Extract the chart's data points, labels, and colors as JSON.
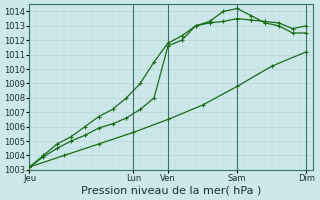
{
  "bg_color": "#cce8e8",
  "grid_color": "#b8d4d4",
  "line_color": "#1a6b1a",
  "ylim": [
    1003,
    1014.5
  ],
  "yticks": [
    1003,
    1004,
    1005,
    1006,
    1007,
    1008,
    1009,
    1010,
    1011,
    1012,
    1013,
    1014
  ],
  "xlabel": "Pression niveau de la mer( hPa )",
  "xlabel_fontsize": 8,
  "tick_fontsize": 6,
  "xtick_labels": [
    "Jeu",
    "Lun",
    "Ven",
    "Sam",
    "Dim"
  ],
  "xtick_positions": [
    0,
    30,
    40,
    60,
    80
  ],
  "xlim": [
    0,
    82
  ],
  "series1_x": [
    0,
    4,
    8,
    12,
    16,
    20,
    24,
    28,
    32,
    36,
    40,
    44,
    48,
    52,
    56,
    60,
    64,
    68,
    72,
    76,
    80
  ],
  "series1_y": [
    1003.2,
    1003.9,
    1004.5,
    1005.0,
    1005.4,
    1005.9,
    1006.2,
    1006.6,
    1007.2,
    1008.0,
    1011.6,
    1012.0,
    1013.0,
    1013.2,
    1013.3,
    1013.5,
    1013.4,
    1013.3,
    1013.2,
    1012.8,
    1013.0
  ],
  "series2_x": [
    0,
    4,
    8,
    12,
    16,
    20,
    24,
    28,
    32,
    36,
    40,
    44,
    48,
    52,
    56,
    60,
    64,
    68,
    72,
    76,
    80
  ],
  "series2_y": [
    1003.2,
    1004.0,
    1004.8,
    1005.3,
    1006.0,
    1006.7,
    1007.2,
    1008.0,
    1009.0,
    1010.5,
    1011.8,
    1012.3,
    1013.0,
    1013.3,
    1014.0,
    1014.2,
    1013.7,
    1013.2,
    1013.0,
    1012.5,
    1012.5
  ],
  "series3_x": [
    0,
    10,
    20,
    30,
    40,
    50,
    60,
    70,
    80
  ],
  "series3_y": [
    1003.2,
    1004.0,
    1004.8,
    1005.6,
    1006.5,
    1007.5,
    1008.8,
    1010.2,
    1011.2
  ],
  "vline_positions": [
    0,
    30,
    40,
    60,
    80
  ],
  "vline_color": "#3a7070",
  "minor_grid_color": "#c0dcdc"
}
